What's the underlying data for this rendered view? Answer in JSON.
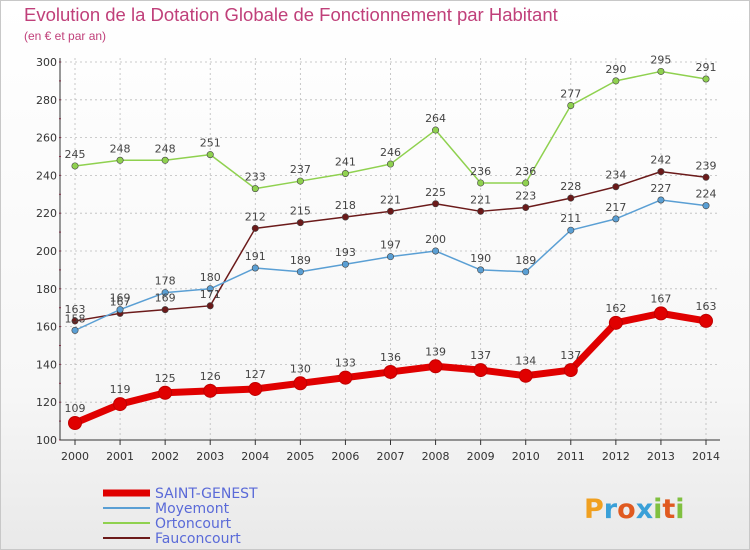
{
  "chart_data": {
    "type": "line",
    "title": "Evolution de la Dotation Globale de Fonctionnement par Habitant",
    "subtitle": "(en € et par an)",
    "x": [
      "2000",
      "2001",
      "2002",
      "2003",
      "2004",
      "2005",
      "2006",
      "2007",
      "2008",
      "2009",
      "2010",
      "2011",
      "2012",
      "2013",
      "2014"
    ],
    "yticks": [
      100,
      120,
      140,
      160,
      180,
      200,
      220,
      240,
      260,
      280,
      300
    ],
    "ylim": [
      100,
      300
    ],
    "grid": true,
    "legend_position": "bottom-left",
    "series": [
      {
        "name": "Ortoncourt",
        "color": "#8fd14f",
        "values": [
          245,
          248,
          248,
          251,
          233,
          237,
          241,
          246,
          264,
          236,
          236,
          277,
          290,
          295,
          291
        ]
      },
      {
        "name": "Fauconcourt",
        "color": "#6b1a1a",
        "values": [
          163,
          167,
          169,
          171,
          212,
          215,
          218,
          221,
          225,
          221,
          223,
          228,
          234,
          242,
          239
        ]
      },
      {
        "name": "Moyemont",
        "color": "#5a9fd4",
        "values": [
          158,
          169,
          178,
          180,
          191,
          189,
          193,
          197,
          200,
          190,
          189,
          211,
          217,
          227,
          224
        ]
      },
      {
        "name": "SAINT-GENEST",
        "color": "#e00000",
        "values": [
          109,
          119,
          125,
          126,
          127,
          130,
          133,
          136,
          139,
          137,
          134,
          137,
          162,
          167,
          163
        ]
      }
    ],
    "legend": [
      "SAINT-GENEST",
      "Moyemont",
      "Ortoncourt",
      "Fauconcourt"
    ],
    "colors": {
      "title": "#c0407a",
      "axis": "#333333",
      "grid": "#bbbbbb",
      "tickmark": "#d23060"
    }
  },
  "logo": {
    "text": "Proxiti"
  }
}
